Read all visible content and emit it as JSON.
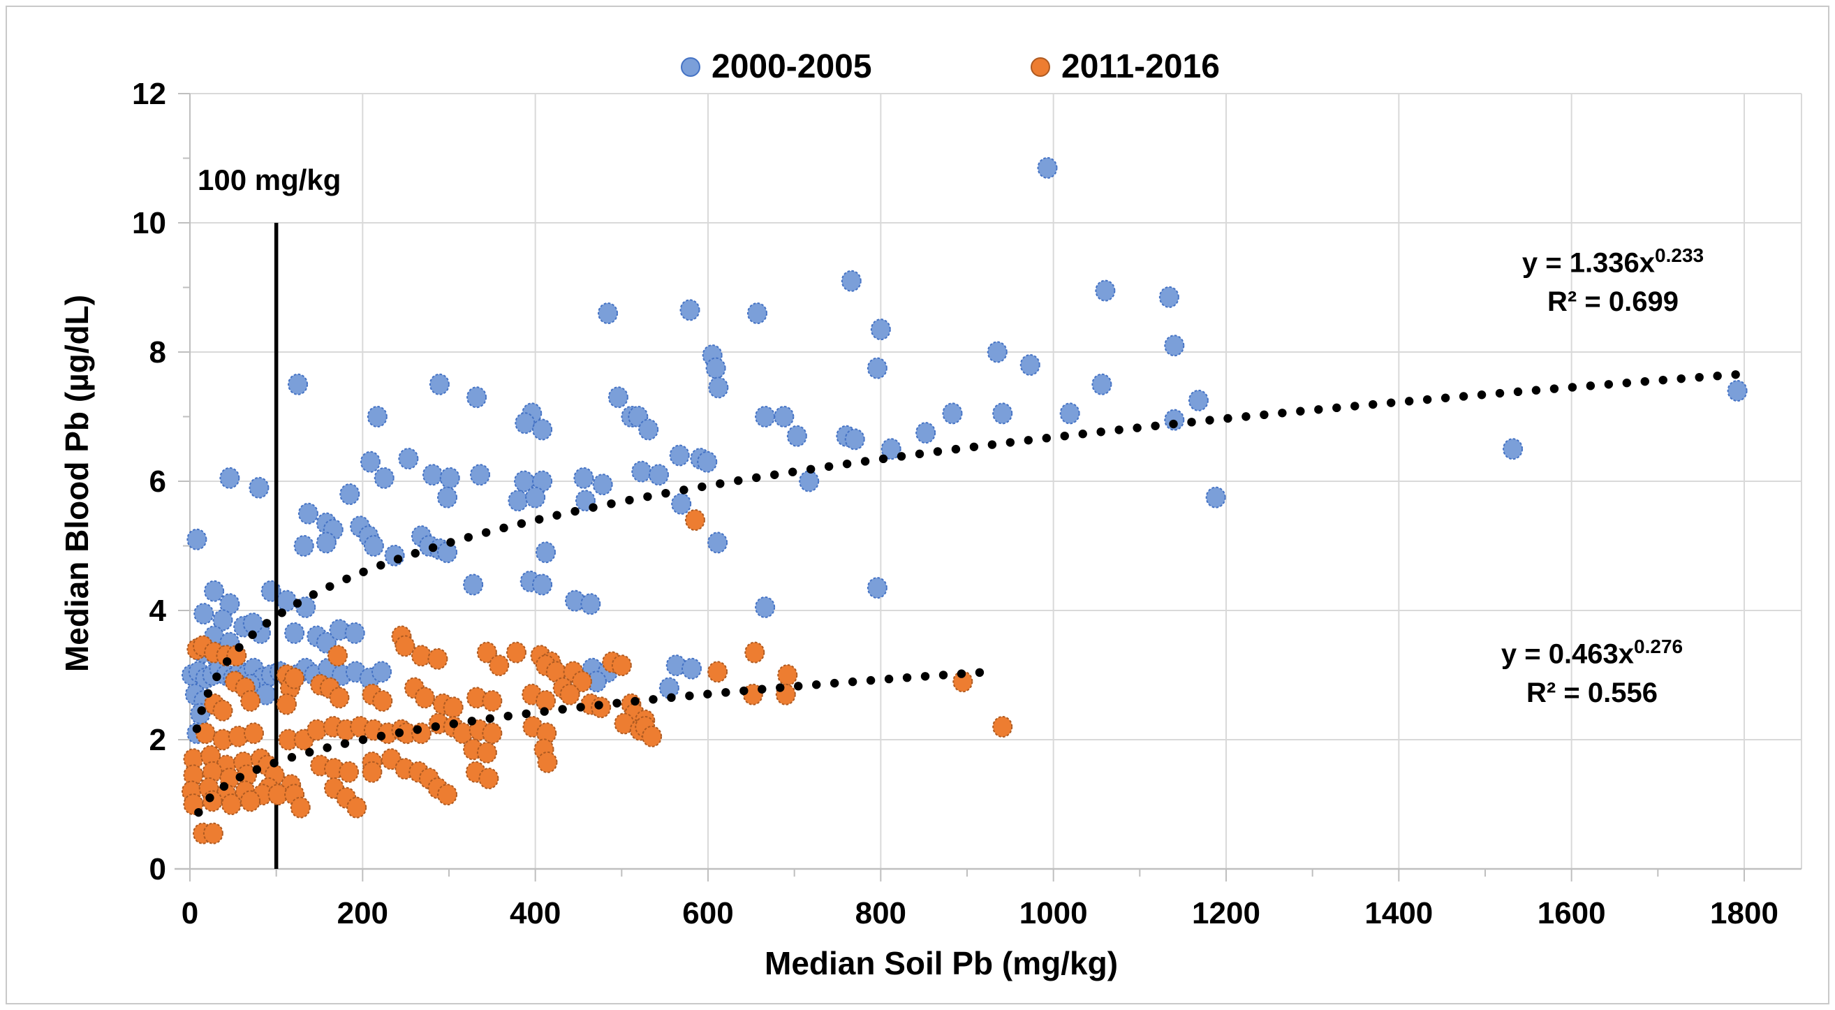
{
  "page": {
    "background": "#ffffff",
    "frame_color": "#c9c9c9"
  },
  "chart_data": {
    "type": "scatter",
    "title": "",
    "xlabel": "Median Soil Pb (mg/kg)",
    "ylabel": "Median Blood Pb (µg/dL)",
    "xlim": [
      0,
      1865
    ],
    "ylim": [
      0,
      12
    ],
    "x_major_ticks": [
      0,
      200,
      400,
      600,
      800,
      1000,
      1200,
      1400,
      1600,
      1800
    ],
    "x_minor_step": 100,
    "y_major_ticks": [
      0,
      2,
      4,
      6,
      8,
      10,
      12
    ],
    "y_minor_step": 1,
    "grid": true,
    "grid_color": "#d9d9d9",
    "axis_color": "#bfbfbf",
    "tick_label_color": "#000000",
    "legend": {
      "position": "top",
      "entries": [
        {
          "label": "2000-2005",
          "fill": "#7b9fd9",
          "stroke": "#4472c4"
        },
        {
          "label": "2011-2016",
          "fill": "#ed7d31",
          "stroke": "#ae5a21"
        }
      ]
    },
    "threshold": {
      "x": 100,
      "y_top": 10,
      "label": "100 mg/kg",
      "color": "#000000"
    },
    "equations": [
      {
        "series": "2000-2005",
        "base": "y = 1.336x",
        "exponent": "0.233",
        "r2": "R² = 0.699"
      },
      {
        "series": "2011-2016",
        "base": "y = 0.463x",
        "exponent": "0.276",
        "r2": "R² = 0.556"
      }
    ],
    "trendlines": [
      {
        "series": "2000-2005",
        "a": 1.336,
        "b": 0.233,
        "x_start": 8,
        "x_end": 1805,
        "style": "dotted",
        "color": "#000000"
      },
      {
        "series": "2011-2016",
        "a": 0.463,
        "b": 0.276,
        "x_start": 10,
        "x_end": 935,
        "style": "dotted",
        "color": "#000000"
      }
    ],
    "series": [
      {
        "name": "2000-2005",
        "fill": "#7b9fd9",
        "stroke": "#4472c4",
        "points": [
          [
            993,
            10.85
          ],
          [
            766,
            9.1
          ],
          [
            1060,
            8.95
          ],
          [
            1134,
            8.85
          ],
          [
            484,
            8.6
          ],
          [
            579,
            8.65
          ],
          [
            657,
            8.6
          ],
          [
            800,
            8.35
          ],
          [
            1140,
            8.1
          ],
          [
            935,
            8.0
          ],
          [
            973,
            7.8
          ],
          [
            796,
            7.75
          ],
          [
            605,
            7.95
          ],
          [
            609,
            7.75
          ],
          [
            612,
            7.45
          ],
          [
            1056,
            7.5
          ],
          [
            1168,
            7.25
          ],
          [
            1792,
            7.4
          ],
          [
            1532,
            6.5
          ],
          [
            1188,
            5.75
          ],
          [
            125,
            7.5
          ],
          [
            289,
            7.5
          ],
          [
            332,
            7.3
          ],
          [
            496,
            7.3
          ],
          [
            217,
            7.0
          ],
          [
            396,
            7.05
          ],
          [
            388,
            6.9
          ],
          [
            408,
            6.8
          ],
          [
            511,
            7.0
          ],
          [
            519,
            7.0
          ],
          [
            531,
            6.8
          ],
          [
            567,
            6.4
          ],
          [
            591,
            6.35
          ],
          [
            599,
            6.3
          ],
          [
            209,
            6.3
          ],
          [
            253,
            6.35
          ],
          [
            666,
            7.0
          ],
          [
            688,
            7.0
          ],
          [
            703,
            6.7
          ],
          [
            760,
            6.7
          ],
          [
            770,
            6.65
          ],
          [
            812,
            6.5
          ],
          [
            852,
            6.75
          ],
          [
            883,
            7.05
          ],
          [
            941,
            7.05
          ],
          [
            1019,
            7.05
          ],
          [
            1140,
            6.95
          ],
          [
            46,
            6.05
          ],
          [
            80,
            5.9
          ],
          [
            281,
            6.1
          ],
          [
            301,
            6.05
          ],
          [
            225,
            6.05
          ],
          [
            336,
            6.1
          ],
          [
            387,
            6.0
          ],
          [
            408,
            6.0
          ],
          [
            456,
            6.05
          ],
          [
            478,
            5.95
          ],
          [
            523,
            6.15
          ],
          [
            543,
            6.1
          ],
          [
            717,
            6.0
          ],
          [
            185,
            5.8
          ],
          [
            298,
            5.75
          ],
          [
            380,
            5.7
          ],
          [
            400,
            5.75
          ],
          [
            458,
            5.7
          ],
          [
            569,
            5.65
          ],
          [
            611,
            5.05
          ],
          [
            137,
            5.5
          ],
          [
            158,
            5.35
          ],
          [
            166,
            5.25
          ],
          [
            8,
            5.1
          ],
          [
            132,
            5.0
          ],
          [
            158,
            5.05
          ],
          [
            197,
            5.3
          ],
          [
            207,
            5.15
          ],
          [
            213,
            5.0
          ],
          [
            268,
            5.15
          ],
          [
            277,
            5.0
          ],
          [
            237,
            4.85
          ],
          [
            289,
            4.95
          ],
          [
            298,
            4.9
          ],
          [
            412,
            4.9
          ],
          [
            328,
            4.4
          ],
          [
            394,
            4.45
          ],
          [
            408,
            4.4
          ],
          [
            446,
            4.15
          ],
          [
            464,
            4.1
          ],
          [
            796,
            4.35
          ],
          [
            666,
            4.05
          ],
          [
            94,
            4.3
          ],
          [
            112,
            4.15
          ],
          [
            134,
            4.05
          ],
          [
            28,
            4.3
          ],
          [
            46,
            4.1
          ],
          [
            16,
            3.95
          ],
          [
            38,
            3.85
          ],
          [
            62,
            3.75
          ],
          [
            82,
            3.65
          ],
          [
            73,
            3.8
          ],
          [
            121,
            3.65
          ],
          [
            147,
            3.6
          ],
          [
            158,
            3.5
          ],
          [
            173,
            3.7
          ],
          [
            191,
            3.65
          ],
          [
            28,
            3.6
          ],
          [
            46,
            3.5
          ],
          [
            15,
            3.35
          ],
          [
            32,
            3.25
          ],
          [
            2,
            3.0
          ],
          [
            10,
            3.05
          ],
          [
            18,
            2.95
          ],
          [
            26,
            3.0
          ],
          [
            34,
            3.1
          ],
          [
            42,
            3.0
          ],
          [
            50,
            2.95
          ],
          [
            58,
            3.05
          ],
          [
            66,
            3.0
          ],
          [
            74,
            3.1
          ],
          [
            84,
            2.95
          ],
          [
            94,
            3.0
          ],
          [
            104,
            3.05
          ],
          [
            114,
            2.95
          ],
          [
            124,
            3.0
          ],
          [
            134,
            3.1
          ],
          [
            144,
            3.0
          ],
          [
            160,
            3.1
          ],
          [
            176,
            3.0
          ],
          [
            192,
            3.05
          ],
          [
            208,
            2.95
          ],
          [
            222,
            3.05
          ],
          [
            466,
            3.1
          ],
          [
            484,
            3.05
          ],
          [
            563,
            3.15
          ],
          [
            581,
            3.1
          ],
          [
            471,
            2.9
          ],
          [
            555,
            2.8
          ],
          [
            70,
            2.85
          ],
          [
            88,
            2.7
          ],
          [
            6,
            2.7
          ],
          [
            16,
            2.6
          ],
          [
            12,
            2.4
          ],
          [
            8,
            2.1
          ]
        ]
      },
      {
        "name": "2011-2016",
        "fill": "#ed7d31",
        "stroke": "#ae5a21",
        "points": [
          [
            585,
            5.4
          ],
          [
            654,
            3.35
          ],
          [
            611,
            3.05
          ],
          [
            692,
            3.0
          ],
          [
            652,
            2.7
          ],
          [
            690,
            2.7
          ],
          [
            895,
            2.9
          ],
          [
            941,
            2.2
          ],
          [
            8,
            3.4
          ],
          [
            15,
            3.45
          ],
          [
            28,
            3.35
          ],
          [
            42,
            3.3
          ],
          [
            54,
            3.3
          ],
          [
            245,
            3.6
          ],
          [
            249,
            3.45
          ],
          [
            171,
            3.3
          ],
          [
            268,
            3.3
          ],
          [
            287,
            3.25
          ],
          [
            344,
            3.35
          ],
          [
            358,
            3.15
          ],
          [
            378,
            3.35
          ],
          [
            406,
            3.3
          ],
          [
            418,
            3.2
          ],
          [
            412,
            3.15
          ],
          [
            424,
            3.05
          ],
          [
            444,
            3.05
          ],
          [
            454,
            2.9
          ],
          [
            489,
            3.2
          ],
          [
            500,
            3.15
          ],
          [
            511,
            2.55
          ],
          [
            52,
            2.9
          ],
          [
            64,
            2.8
          ],
          [
            70,
            2.6
          ],
          [
            112,
            3.0
          ],
          [
            116,
            2.8
          ],
          [
            121,
            2.95
          ],
          [
            151,
            2.85
          ],
          [
            162,
            2.8
          ],
          [
            173,
            2.65
          ],
          [
            211,
            2.7
          ],
          [
            223,
            2.6
          ],
          [
            260,
            2.8
          ],
          [
            272,
            2.65
          ],
          [
            293,
            2.55
          ],
          [
            305,
            2.5
          ],
          [
            332,
            2.65
          ],
          [
            350,
            2.6
          ],
          [
            396,
            2.7
          ],
          [
            412,
            2.6
          ],
          [
            432,
            2.8
          ],
          [
            440,
            2.7
          ],
          [
            464,
            2.55
          ],
          [
            476,
            2.5
          ],
          [
            515,
            2.4
          ],
          [
            527,
            2.3
          ],
          [
            28,
            2.55
          ],
          [
            38,
            2.45
          ],
          [
            503,
            2.25
          ],
          [
            521,
            2.15
          ],
          [
            112,
            2.55
          ],
          [
            18,
            2.1
          ],
          [
            38,
            2.0
          ],
          [
            56,
            2.05
          ],
          [
            74,
            2.1
          ],
          [
            114,
            2.0
          ],
          [
            132,
            2.0
          ],
          [
            147,
            2.15
          ],
          [
            166,
            2.2
          ],
          [
            181,
            2.15
          ],
          [
            197,
            2.2
          ],
          [
            213,
            2.15
          ],
          [
            229,
            2.1
          ],
          [
            245,
            2.15
          ],
          [
            251,
            2.1
          ],
          [
            268,
            2.1
          ],
          [
            288,
            2.25
          ],
          [
            305,
            2.2
          ],
          [
            316,
            2.1
          ],
          [
            335,
            2.15
          ],
          [
            350,
            2.1
          ],
          [
            397,
            2.2
          ],
          [
            413,
            2.1
          ],
          [
            527,
            2.2
          ],
          [
            535,
            2.05
          ],
          [
            4,
            1.7
          ],
          [
            24,
            1.75
          ],
          [
            42,
            1.6
          ],
          [
            62,
            1.65
          ],
          [
            82,
            1.7
          ],
          [
            90,
            1.6
          ],
          [
            328,
            1.85
          ],
          [
            344,
            1.8
          ],
          [
            410,
            1.85
          ],
          [
            414,
            1.65
          ],
          [
            151,
            1.6
          ],
          [
            167,
            1.55
          ],
          [
            184,
            1.5
          ],
          [
            211,
            1.65
          ],
          [
            233,
            1.7
          ],
          [
            211,
            1.5
          ],
          [
            249,
            1.55
          ],
          [
            265,
            1.5
          ],
          [
            277,
            1.4
          ],
          [
            331,
            1.5
          ],
          [
            346,
            1.4
          ],
          [
            4,
            1.45
          ],
          [
            26,
            1.5
          ],
          [
            46,
            1.4
          ],
          [
            66,
            1.45
          ],
          [
            98,
            1.45
          ],
          [
            91,
            1.25
          ],
          [
            117,
            1.3
          ],
          [
            167,
            1.25
          ],
          [
            287,
            1.25
          ],
          [
            2,
            1.2
          ],
          [
            22,
            1.25
          ],
          [
            42,
            1.15
          ],
          [
            64,
            1.2
          ],
          [
            84,
            1.15
          ],
          [
            102,
            1.15
          ],
          [
            121,
            1.15
          ],
          [
            181,
            1.1
          ],
          [
            298,
            1.15
          ],
          [
            4,
            1.0
          ],
          [
            26,
            1.05
          ],
          [
            48,
            1.0
          ],
          [
            70,
            1.05
          ],
          [
            128,
            0.95
          ],
          [
            193,
            0.95
          ],
          [
            15,
            0.55
          ],
          [
            27,
            0.55
          ]
        ]
      }
    ]
  }
}
